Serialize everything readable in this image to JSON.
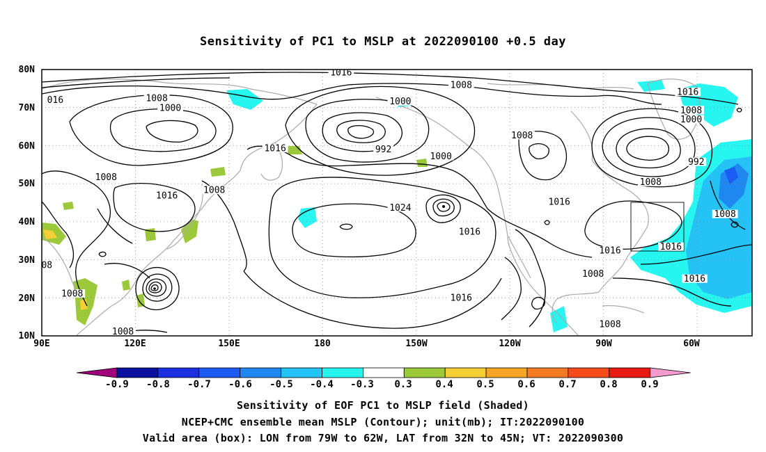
{
  "title": "Sensitivity of PC1 to MSLP at 2022090100 +0.5 day",
  "map": {
    "lon_ticks": [
      "90E",
      "120E",
      "150E",
      "180",
      "150W",
      "120W",
      "90W",
      "60W"
    ],
    "lat_ticks": [
      "80N",
      "70N",
      "60N",
      "50N",
      "40N",
      "30N",
      "20N",
      "10N"
    ],
    "contour_labels": [
      {
        "text": "1016",
        "lon": 178.5,
        "lat": 78.7
      },
      {
        "text": "016",
        "lon": 94,
        "lat": 71.5
      },
      {
        "text": "1008",
        "lon": 124,
        "lat": 72
      },
      {
        "text": "1000",
        "lon": 128,
        "lat": 69.4
      },
      {
        "text": "1008",
        "lon": 214,
        "lat": 75.4
      },
      {
        "text": "1000",
        "lon": 196,
        "lat": 71.1
      },
      {
        "text": "1016",
        "lon": 281,
        "lat": 73.6
      },
      {
        "text": "1008",
        "lon": 282,
        "lat": 68.8
      },
      {
        "text": "1000",
        "lon": 282,
        "lat": 66.4
      },
      {
        "text": "992",
        "lon": 191,
        "lat": 58.5
      },
      {
        "text": "1000",
        "lon": 208,
        "lat": 56.7
      },
      {
        "text": "1008",
        "lon": 232,
        "lat": 62.2
      },
      {
        "text": "992",
        "lon": 283.5,
        "lat": 55.2
      },
      {
        "text": "1016",
        "lon": 159,
        "lat": 58.8
      },
      {
        "text": "1008",
        "lon": 109,
        "lat": 51.2
      },
      {
        "text": "1008",
        "lon": 141,
        "lat": 47.8
      },
      {
        "text": "1016",
        "lon": 127,
        "lat": 46.4
      },
      {
        "text": "1008",
        "lon": 270,
        "lat": 49.9
      },
      {
        "text": "1024",
        "lon": 196,
        "lat": 43.2
      },
      {
        "text": "1016",
        "lon": 243,
        "lat": 44.7
      },
      {
        "text": "1016",
        "lon": 216.5,
        "lat": 36.9
      },
      {
        "text": "1008",
        "lon": 292,
        "lat": 41.5
      },
      {
        "text": "1016",
        "lon": 276,
        "lat": 32.9
      },
      {
        "text": "1016",
        "lon": 258,
        "lat": 31.9
      },
      {
        "text": "08",
        "lon": 91.5,
        "lat": 28.1
      },
      {
        "text": "1008",
        "lon": 99,
        "lat": 20.6
      },
      {
        "text": "1008",
        "lon": 253,
        "lat": 25.8
      },
      {
        "text": "1016",
        "lon": 283,
        "lat": 24.5
      },
      {
        "text": "1016",
        "lon": 214,
        "lat": 19.5
      },
      {
        "text": "1008",
        "lon": 114,
        "lat": 10.6
      },
      {
        "text": "1008",
        "lon": 258,
        "lat": 12.6
      }
    ]
  },
  "colorbar": {
    "labels": [
      "-0.9",
      "-0.8",
      "-0.7",
      "-0.6",
      "-0.5",
      "-0.4",
      "-0.3",
      "0.3",
      "0.4",
      "0.5",
      "0.6",
      "0.7",
      "0.8",
      "0.9"
    ],
    "colors": [
      "#a0007a",
      "#0b0fa0",
      "#1b2ee0",
      "#1d5bf5",
      "#1e88f0",
      "#25c2f5",
      "#27f5f0",
      "#ffffff",
      "#9cc93a",
      "#f5cf35",
      "#f5a528",
      "#f57a22",
      "#f54a1a",
      "#e81a12",
      "#f49ad0"
    ]
  },
  "legend": {
    "line1": "Sensitivity of EOF PC1 to MSLP field (Shaded)",
    "line2": "NCEP+CMC ensemble mean MSLP (Contour); unit(mb); IT:2022090100",
    "line3": "Valid area (box): LON from 79W to 62W, LAT from 32N to 45N; VT: 2022090300"
  }
}
